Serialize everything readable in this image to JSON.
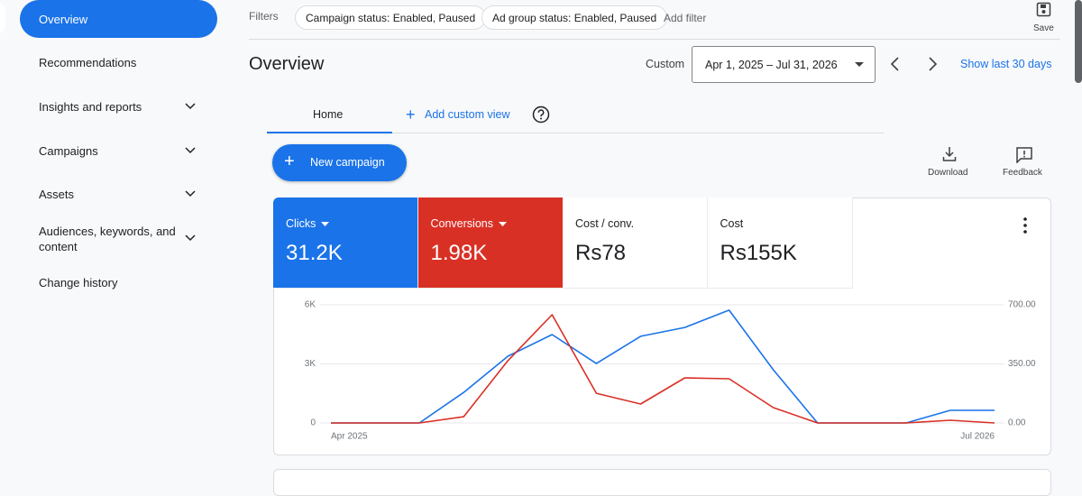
{
  "sidebar": {
    "active": "Overview",
    "items": [
      "Recommendations",
      "Insights and reports",
      "Campaigns",
      "Assets",
      "Audiences, keywords, and content",
      "Change history"
    ]
  },
  "filters": {
    "label": "Filters",
    "chips": [
      "Campaign status: Enabled, Paused",
      "Ad group status: Enabled, Paused"
    ],
    "add": "Add filter"
  },
  "save": "Save",
  "header": {
    "title": "Overview",
    "range_label": "Custom",
    "date_range": "Apr 1, 2025 – Jul 31, 2026",
    "show_last": "Show last 30 days"
  },
  "tabs": {
    "home": "Home",
    "add_view": "Add custom view"
  },
  "new_campaign": "New campaign",
  "actions": {
    "download": "Download",
    "feedback": "Feedback"
  },
  "metrics": [
    {
      "value": "31.2K"
    },
    {
      "value": "1.98K"
    },
    {
      "label": "Cost / conv.",
      "value": "Rs78"
    },
    {
      "label": "Cost",
      "value": "Rs155K"
    }
  ],
  "chart_data": {
    "type": "line",
    "categories": [
      "Apr 2025",
      null,
      null,
      null,
      null,
      null,
      null,
      null,
      null,
      null,
      null,
      null,
      null,
      null,
      null,
      "Jul 2026"
    ],
    "series": [
      {
        "name": "Clicks",
        "color": "#1a73e8",
        "values": [
          0,
          0,
          0,
          1550,
          3390,
          4490,
          3020,
          4400,
          4850,
          5730,
          2700,
          0,
          0,
          0,
          640,
          640
        ]
      },
      {
        "name": "Conversions",
        "color": "#d93025",
        "axis": "y2",
        "values": [
          0,
          0,
          0,
          37,
          369,
          641,
          176,
          112,
          267,
          262,
          91,
          0,
          0,
          0,
          16,
          0
        ]
      }
    ],
    "ylim": [
      0,
      6000
    ],
    "yticks": [
      0,
      {
        "value": 3000,
        "label": "3K"
      },
      {
        "value": 6000,
        "label": "6K"
      }
    ],
    "y2lim": [
      0,
      700
    ],
    "y2ticks": [
      {
        "value": 0,
        "label": "0.00"
      },
      {
        "value": 350,
        "label": "350.00"
      },
      {
        "value": 700,
        "label": "700.00"
      }
    ],
    "grid": true
  }
}
